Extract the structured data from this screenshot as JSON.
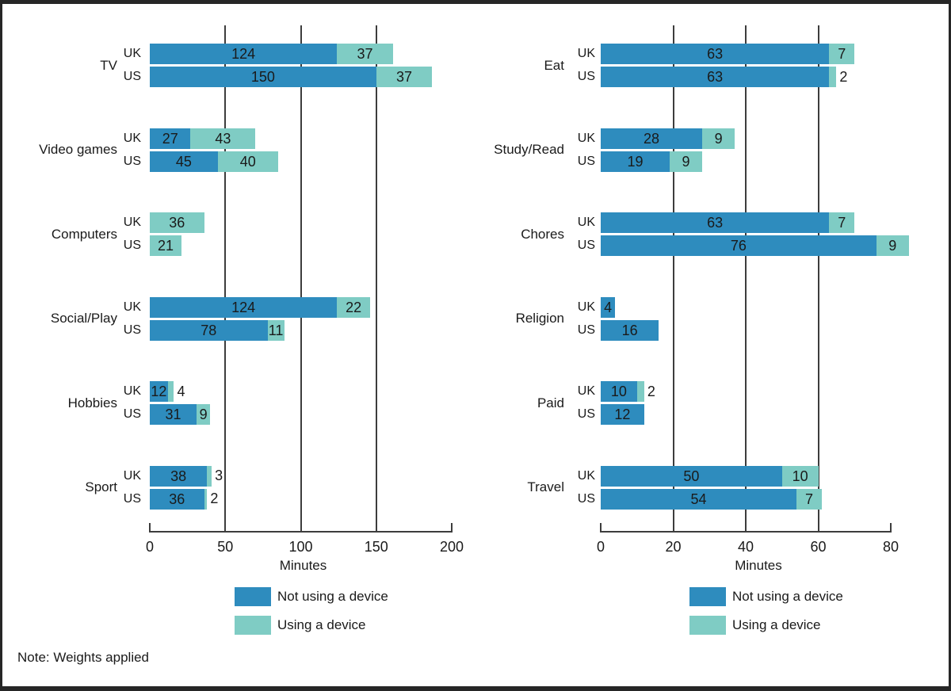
{
  "note": "Note: Weights applied",
  "colors": {
    "not_device": "#2E8CBE",
    "device": "#7FCCC4",
    "axis": "#3d3d3d",
    "text": "#1a1a1a",
    "border": "#262626"
  },
  "legend": [
    {
      "key": "not_device",
      "label": "Not using a device"
    },
    {
      "key": "device",
      "label": "Using a device"
    }
  ],
  "chart_data": [
    {
      "type": "bar",
      "orientation": "horizontal",
      "stacked": true,
      "title": "",
      "xlabel": "Minutes",
      "xlim": [
        0,
        200
      ],
      "xticks": [
        0,
        50,
        100,
        150,
        200
      ],
      "gridlines": [
        50,
        100,
        150
      ],
      "grid": true,
      "legend_position": "bottom",
      "series_order": [
        "Not using a device",
        "Using a device"
      ],
      "groups": [
        {
          "category": "TV",
          "bars": [
            {
              "row": "UK",
              "not_device": 124,
              "device": 37
            },
            {
              "row": "US",
              "not_device": 150,
              "device": 37
            }
          ]
        },
        {
          "category": "Video games",
          "bars": [
            {
              "row": "UK",
              "not_device": 27,
              "device": 43
            },
            {
              "row": "US",
              "not_device": 45,
              "device": 40
            }
          ]
        },
        {
          "category": "Computers",
          "bars": [
            {
              "row": "UK",
              "not_device": 0,
              "device": 36
            },
            {
              "row": "US",
              "not_device": 0,
              "device": 21
            }
          ]
        },
        {
          "category": "Social/Play",
          "bars": [
            {
              "row": "UK",
              "not_device": 124,
              "device": 22
            },
            {
              "row": "US",
              "not_device": 78,
              "device": 11
            }
          ]
        },
        {
          "category": "Hobbies",
          "bars": [
            {
              "row": "UK",
              "not_device": 12,
              "device": 4
            },
            {
              "row": "US",
              "not_device": 31,
              "device": 9
            }
          ]
        },
        {
          "category": "Sport",
          "bars": [
            {
              "row": "UK",
              "not_device": 38,
              "device": 3
            },
            {
              "row": "US",
              "not_device": 36,
              "device": 2
            }
          ]
        }
      ]
    },
    {
      "type": "bar",
      "orientation": "horizontal",
      "stacked": true,
      "title": "",
      "xlabel": "Minutes",
      "xlim": [
        0,
        80
      ],
      "xticks": [
        0,
        20,
        40,
        60,
        80
      ],
      "gridlines": [
        20,
        40,
        60
      ],
      "grid": true,
      "legend_position": "bottom",
      "series_order": [
        "Not using a device",
        "Using a device"
      ],
      "groups": [
        {
          "category": "Eat",
          "bars": [
            {
              "row": "UK",
              "not_device": 63,
              "device": 7
            },
            {
              "row": "US",
              "not_device": 63,
              "device": 2
            }
          ]
        },
        {
          "category": "Study/Read",
          "bars": [
            {
              "row": "UK",
              "not_device": 28,
              "device": 9
            },
            {
              "row": "US",
              "not_device": 19,
              "device": 9
            }
          ]
        },
        {
          "category": "Chores",
          "bars": [
            {
              "row": "UK",
              "not_device": 63,
              "device": 7
            },
            {
              "row": "US",
              "not_device": 76,
              "device": 9
            }
          ]
        },
        {
          "category": "Religion",
          "bars": [
            {
              "row": "UK",
              "not_device": 4,
              "device": 0
            },
            {
              "row": "US",
              "not_device": 16,
              "device": 0
            }
          ]
        },
        {
          "category": "Paid",
          "bars": [
            {
              "row": "UK",
              "not_device": 10,
              "device": 2
            },
            {
              "row": "US",
              "not_device": 12,
              "device": 0
            }
          ]
        },
        {
          "category": "Travel",
          "bars": [
            {
              "row": "UK",
              "not_device": 50,
              "device": 10
            },
            {
              "row": "US",
              "not_device": 54,
              "device": 7
            }
          ]
        }
      ]
    }
  ]
}
